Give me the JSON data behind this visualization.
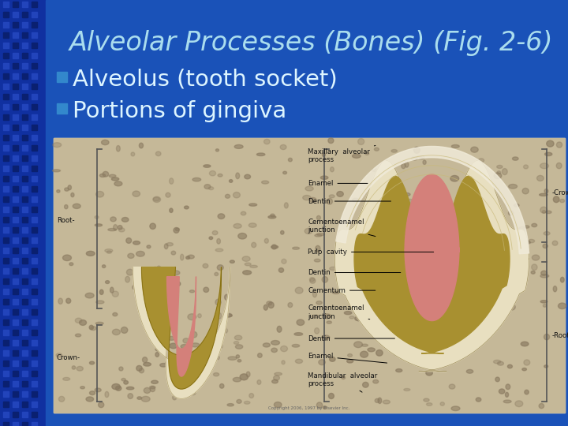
{
  "title": "Alveolar Processes (Bones) (Fig. 2-6)",
  "title_color": "#aaddee",
  "title_fontsize": 24,
  "bullet_points": [
    "Alveolus (tooth socket)",
    "Portions of gingiva"
  ],
  "bullet_color": "#ddf5ff",
  "bullet_fontsize": 21,
  "bullet_marker_color": "#3388cc",
  "slide_bg": "#1a52b8",
  "stripe_bg": "#1030a0",
  "stripe_light": "#2244bb",
  "stripe_dark": "#0a2070",
  "image_bg": "#f2ecd8",
  "bone_color": "#c8bfa0",
  "enamel_color": "#e8dfc0",
  "dentin_color": "#b8a840",
  "pulp_color": "#d4857a",
  "cementum_color": "#9a8c40",
  "white_enamel": "#f0ead8"
}
